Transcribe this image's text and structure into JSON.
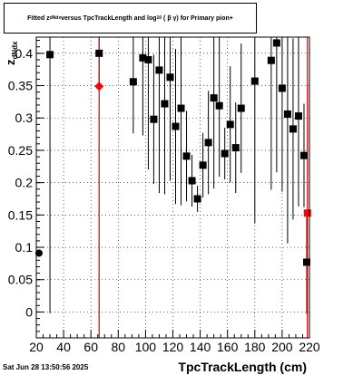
{
  "chart_data": {
    "type": "scatter",
    "title_parts": {
      "pre": "Fitted  z",
      "sub1": "dNdx",
      "mid": "  versus TpcTrackLength and log",
      "sub2": "10",
      "post": "( β γ) for Primary pion+"
    },
    "xlabel": "TpcTrackLength (cm)",
    "ylabel": "z",
    "ylabel_sub": "dNdx",
    "xlim": [
      20,
      220
    ],
    "ylim": [
      -0.04,
      0.425
    ],
    "x_ticks": [
      20,
      40,
      60,
      80,
      100,
      120,
      140,
      160,
      180,
      200,
      220
    ],
    "y_ticks": [
      0,
      0.05,
      0.1,
      0.15,
      0.2,
      0.25,
      0.3,
      0.35,
      0.4
    ],
    "y_tick_labels": [
      "0",
      "0.05",
      "0.1",
      "0.15",
      "0.2",
      "0.25",
      "0.3",
      "0.35",
      "0.4"
    ],
    "grid": true,
    "series": [
      {
        "color": "#000000",
        "marker": "square",
        "points": [
          {
            "x": 30,
            "y": 0.398,
            "err": 0.4
          },
          {
            "x": 66,
            "y": 0.4,
            "err": 0.05
          },
          {
            "x": 91,
            "y": 0.356,
            "err": 0.08
          },
          {
            "x": 98,
            "y": 0.393,
            "err": 0.12
          },
          {
            "x": 102,
            "y": 0.39,
            "err": 0.17
          },
          {
            "x": 106,
            "y": 0.298,
            "err": 0.1
          },
          {
            "x": 110,
            "y": 0.374,
            "err": 0.19
          },
          {
            "x": 114,
            "y": 0.322,
            "err": 0.14
          },
          {
            "x": 118,
            "y": 0.363,
            "err": 0.16
          },
          {
            "x": 122,
            "y": 0.287,
            "err": 0.12
          },
          {
            "x": 126,
            "y": 0.315,
            "err": 0.15
          },
          {
            "x": 130,
            "y": 0.241,
            "err": 0.07
          },
          {
            "x": 134,
            "y": 0.203,
            "err": 0.04
          },
          {
            "x": 138,
            "y": 0.175,
            "err": 0.02
          },
          {
            "x": 142,
            "y": 0.227,
            "err": 0.05
          },
          {
            "x": 146,
            "y": 0.262,
            "err": 0.08
          },
          {
            "x": 150,
            "y": 0.331,
            "err": 0.14
          },
          {
            "x": 154,
            "y": 0.319,
            "err": 0.11
          },
          {
            "x": 158,
            "y": 0.245,
            "err": 0.04
          },
          {
            "x": 162,
            "y": 0.29,
            "err": 0.09
          },
          {
            "x": 166,
            "y": 0.254,
            "err": 0.07
          },
          {
            "x": 170,
            "y": 0.315,
            "err": 0.1
          },
          {
            "x": 180,
            "y": 0.357,
            "err": 0.22
          },
          {
            "x": 192,
            "y": 0.389,
            "err": 0.2
          },
          {
            "x": 196,
            "y": 0.416,
            "err": 0.2
          },
          {
            "x": 200,
            "y": 0.346,
            "err": 0.16
          },
          {
            "x": 204,
            "y": 0.306,
            "err": 0.2
          },
          {
            "x": 208,
            "y": 0.283,
            "err": 0.14
          },
          {
            "x": 212,
            "y": 0.303,
            "err": 0.14
          },
          {
            "x": 216,
            "y": 0.242,
            "err": 0.08
          },
          {
            "x": 218,
            "y": 0.077,
            "err": 0.08
          }
        ]
      },
      {
        "color": "#000000",
        "marker": "circle",
        "points": [
          {
            "x": 22,
            "y": 0.091,
            "err": 0.0
          }
        ]
      },
      {
        "color": "#ff0000",
        "marker": "diamond",
        "points": [
          {
            "x": 66,
            "y": 0.349,
            "err": 0.4
          }
        ]
      },
      {
        "color": "#ff0000",
        "marker": "square",
        "points": [
          {
            "x": 218.5,
            "y": 0.153,
            "err": 0.2
          }
        ]
      }
    ],
    "vertical_lines": [
      {
        "x": 66,
        "color": "#8b0000"
      },
      {
        "x": 218.5,
        "color": "#8b0000"
      }
    ]
  },
  "footer": {
    "datestamp": "Sat Jun 28 13:50:56 2025"
  }
}
